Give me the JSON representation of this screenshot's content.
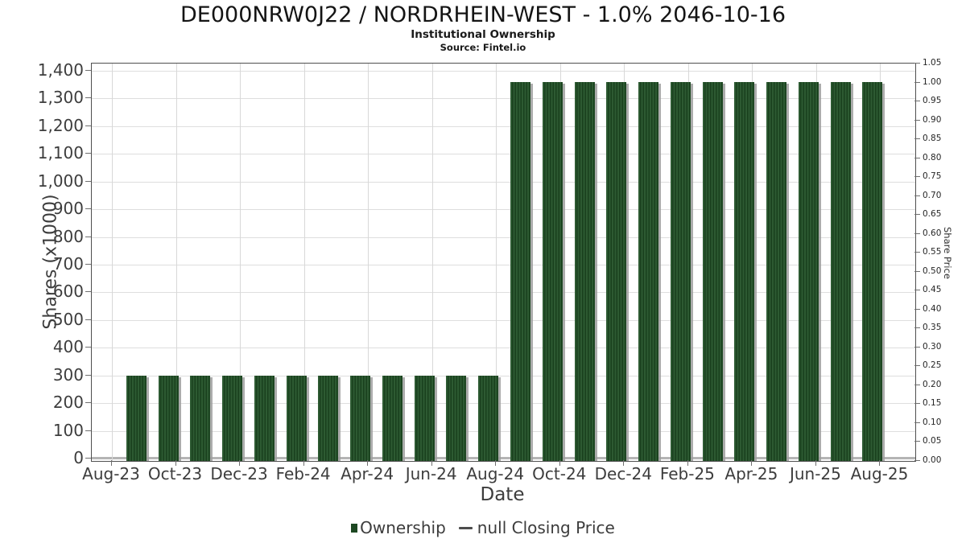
{
  "header": {
    "title": "DE000NRW0J22 / NORDRHEIN-WEST - 1.0% 2046-10-16",
    "subtitle": "Institutional Ownership",
    "source": "Source: Fintel.io"
  },
  "chart_data": {
    "type": "bar",
    "title": "DE000NRW0J22 / NORDRHEIN-WEST - 1.0% 2046-10-16",
    "subtitle": "Institutional Ownership",
    "source": "Source: Fintel.io",
    "xlabel": "Date",
    "ylabel_left": "Shares (x1000)",
    "ylabel_right": "Share Price",
    "ylim_left": [
      0,
      1400
    ],
    "ylim_right": [
      0.0,
      1.05
    ],
    "grid": true,
    "legend_position": "bottom",
    "x_tick_labels": [
      "Aug-23",
      "Oct-23",
      "Dec-23",
      "Feb-24",
      "Apr-24",
      "Jun-24",
      "Aug-24",
      "Oct-24",
      "Dec-24",
      "Feb-25",
      "Apr-25",
      "Jun-25",
      "Aug-25"
    ],
    "left_tick_labels": [
      "1,400",
      "1,300",
      "1,200",
      "1,100",
      "1,000",
      "900",
      "800",
      "700",
      "600",
      "500",
      "400",
      "300",
      "200",
      "100",
      "0"
    ],
    "right_tick_labels": [
      "1.05",
      "1.00",
      "0.95",
      "0.90",
      "0.85",
      "0.80",
      "0.75",
      "0.70",
      "0.65",
      "0.60",
      "0.55",
      "0.50",
      "0.45",
      "0.40",
      "0.35",
      "0.30",
      "0.25",
      "0.20",
      "0.15",
      "0.10",
      "0.05",
      "0.00"
    ],
    "categories": [
      "Sep-23",
      "Oct-23",
      "Nov-23",
      "Dec-23",
      "Jan-24",
      "Feb-24",
      "Mar-24",
      "Apr-24",
      "May-24",
      "Jun-24",
      "Jul-24",
      "Aug-24",
      "Sep-24",
      "Oct-24",
      "Nov-24",
      "Dec-24",
      "Jan-25",
      "Feb-25",
      "Mar-25",
      "Apr-25",
      "May-25",
      "Jun-25",
      "Jul-25",
      "Aug-25"
    ],
    "series": [
      {
        "name": "Ownership",
        "type": "bar",
        "axis": "left",
        "units": "shares x1000",
        "color": "#1d4822",
        "values": [
          300,
          300,
          300,
          300,
          300,
          300,
          300,
          300,
          300,
          300,
          300,
          300,
          1360,
          1360,
          1360,
          1360,
          1360,
          1360,
          1360,
          1360,
          1360,
          1360,
          1360,
          1360
        ]
      },
      {
        "name": "null Closing Price",
        "type": "line",
        "axis": "right",
        "color": "#4d4d4d",
        "values": []
      }
    ]
  },
  "legend": {
    "items": [
      {
        "label": "Ownership",
        "marker": "square-icon"
      },
      {
        "label": "null Closing Price",
        "marker": "line-icon"
      }
    ]
  },
  "colors": {
    "bar_stripe_light": "#2d5a32",
    "bar_stripe_dark": "#19401d",
    "bar_shadow": "#a8a8a8",
    "grid": "#dedede",
    "spine": "#4f4f4f",
    "tick_text": "#3d3d3d",
    "legend_square": "#1d4822",
    "legend_line": "#4d4d4d"
  }
}
